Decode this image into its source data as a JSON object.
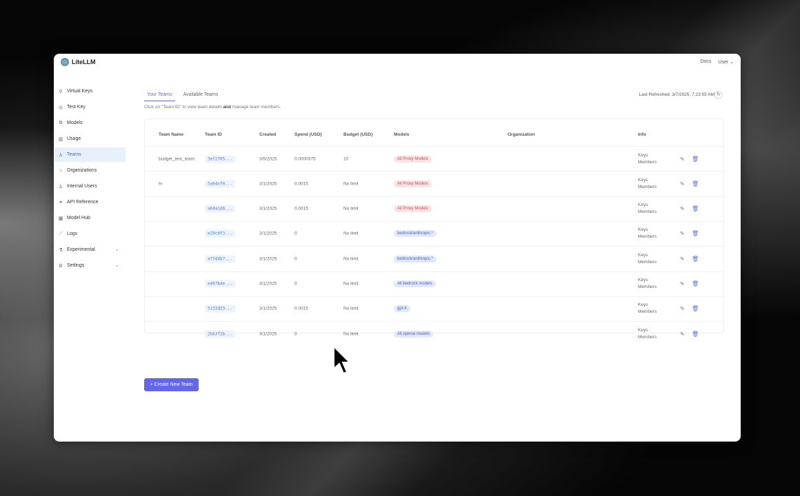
{
  "app": {
    "name": "LiteLLM"
  },
  "header": {
    "docs": "Docs",
    "user": "User"
  },
  "sidebar": {
    "items": [
      {
        "label": "Virtual Keys",
        "icon": "key-icon",
        "glyph": "⚲"
      },
      {
        "label": "Test Key",
        "icon": "play-circle-icon",
        "glyph": "◎"
      },
      {
        "label": "Models",
        "icon": "cube-icon",
        "glyph": "⧉"
      },
      {
        "label": "Usage",
        "icon": "bar-chart-icon",
        "glyph": "▥"
      },
      {
        "label": "Teams",
        "icon": "team-icon",
        "glyph": "♙",
        "active": true
      },
      {
        "label": "Organizations",
        "icon": "bank-icon",
        "glyph": "⌂"
      },
      {
        "label": "Internal Users",
        "icon": "user-icon",
        "glyph": "♙"
      },
      {
        "label": "API Reference",
        "icon": "link-icon",
        "glyph": "⚭"
      },
      {
        "label": "Model Hub",
        "icon": "grid-icon",
        "glyph": "▦"
      },
      {
        "label": "Logs",
        "icon": "line-chart-icon",
        "glyph": "⟋"
      },
      {
        "label": "Experimental",
        "icon": "flask-icon",
        "glyph": "⚗",
        "expandable": true
      },
      {
        "label": "Settings",
        "icon": "gear-icon",
        "glyph": "⚙",
        "expandable": true
      }
    ]
  },
  "tabs": [
    {
      "label": "Your Teams",
      "active": true
    },
    {
      "label": "Available Teams"
    }
  ],
  "hint": {
    "pre": "Click on \"Team ID\" to view team details ",
    "bold": "and",
    "post": " manage team members."
  },
  "refresh": {
    "label": "Last Refreshed: 3/7/2025, 7:23:55 AM"
  },
  "table": {
    "headers": [
      "Team Name",
      "Team ID",
      "Created",
      "Spend (USD)",
      "Budget (USD)",
      "Models",
      "Organization",
      "Info"
    ],
    "rows": [
      {
        "name": "budget_test_team",
        "id": "3ef2705...",
        "created": "3/5/2025",
        "spend": "0.0000375",
        "budget": "10",
        "model": "All Proxy Models",
        "model_color": "red",
        "info1": "Keys",
        "info2": "Members"
      },
      {
        "name": "hi",
        "id": "5a64cf0...",
        "created": "3/1/2025",
        "spend": "0.0015",
        "budget": "No limit",
        "model": "All Proxy Models",
        "model_color": "red",
        "info1": "Keys",
        "info2": "Members"
      },
      {
        "name": "",
        "id": "a64a1d6...",
        "created": "3/1/2025",
        "spend": "0.0015",
        "budget": "No limit",
        "model": "All Proxy Models",
        "model_color": "red",
        "info1": "Keys",
        "info2": "Members"
      },
      {
        "name": "",
        "id": "e29c6f3...",
        "created": "3/1/2025",
        "spend": "0",
        "budget": "No limit",
        "model": "bedrock/anthropic.*",
        "model_color": "blue",
        "info1": "Keys",
        "info2": "Members"
      },
      {
        "name": "",
        "id": "a77d4b7...",
        "created": "3/1/2025",
        "spend": "0",
        "budget": "No limit",
        "model": "bedrock/anthropic.*",
        "model_color": "blue",
        "info1": "Keys",
        "info2": "Members"
      },
      {
        "name": "",
        "id": "e497b4e...",
        "created": "3/1/2025",
        "spend": "0",
        "budget": "No limit",
        "model": "All bedrock models",
        "model_color": "blue",
        "info1": "Keys",
        "info2": "Members"
      },
      {
        "name": "",
        "id": "5132d23...",
        "created": "3/1/2025",
        "spend": "0.0015",
        "budget": "No limit",
        "model": "gpt-4",
        "model_color": "blue",
        "info1": "Keys",
        "info2": "Members"
      },
      {
        "name": "",
        "id": "2bb3f2b...",
        "created": "3/1/2025",
        "spend": "0",
        "budget": "No limit",
        "model": "All openai models",
        "model_color": "blue",
        "info1": "Keys",
        "info2": "Members"
      }
    ]
  },
  "create_button": "+ Create New Team"
}
